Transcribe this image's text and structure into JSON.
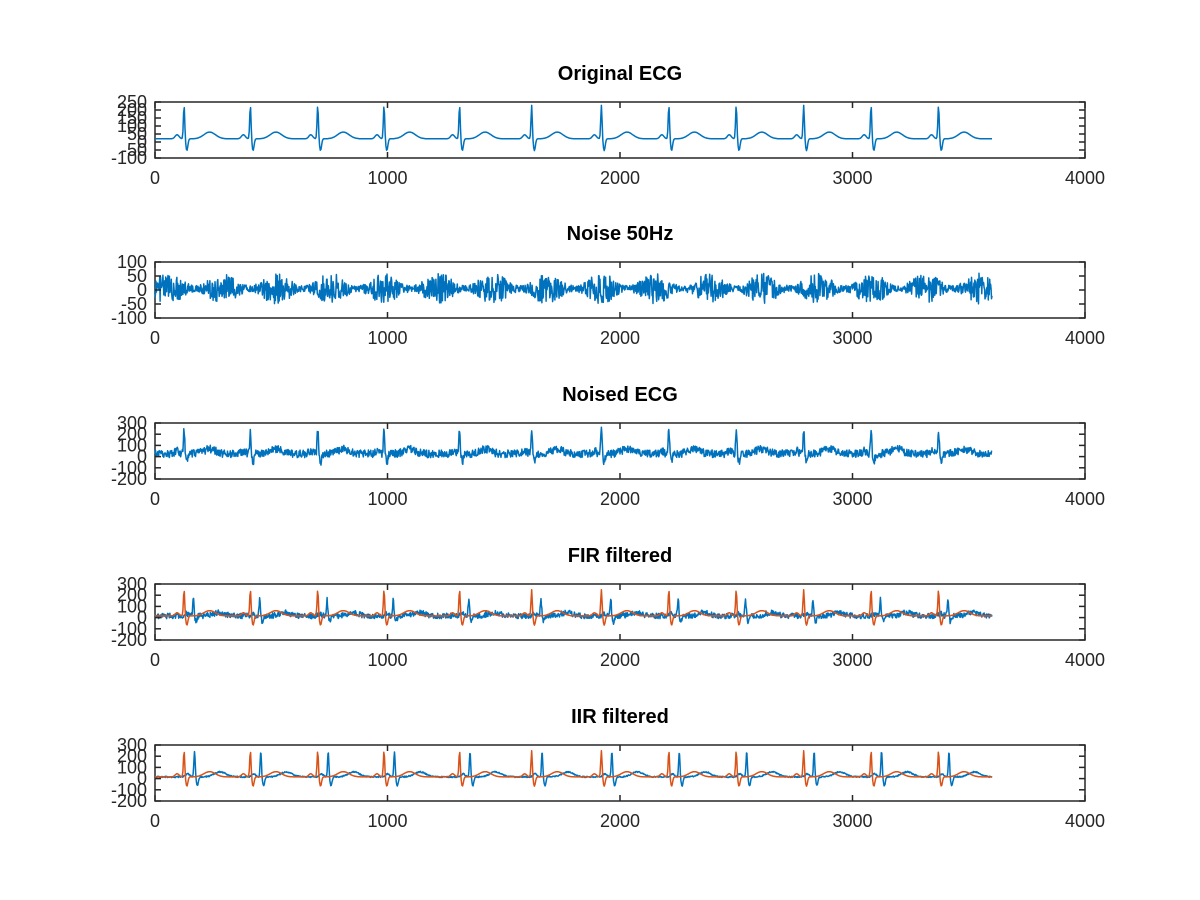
{
  "colors": {
    "blue": "#0072BD",
    "orange": "#D95319",
    "axis": "#262626"
  },
  "chart_data": [
    {
      "type": "line",
      "title": "Original ECG",
      "xlim": [
        0,
        4000
      ],
      "ylim": [
        -100,
        250
      ],
      "xticks": [
        "0",
        "1000",
        "2000",
        "3000",
        "4000"
      ],
      "yticks": [
        "-100",
        "-50",
        "0",
        "50",
        "100",
        "150",
        "200",
        "250"
      ],
      "grid": false,
      "series": [
        {
          "color": "#0072BD",
          "signal": "ecg",
          "baseline": 20,
          "r_peak": 230,
          "noise_amp": 0,
          "lag": 0,
          "x_end": 3600
        }
      ]
    },
    {
      "type": "line",
      "title": "Noise 50Hz",
      "xlim": [
        0,
        4000
      ],
      "ylim": [
        -100,
        100
      ],
      "xticks": [
        "0",
        "1000",
        "2000",
        "3000",
        "4000"
      ],
      "yticks": [
        "-100",
        "-50",
        "0",
        "50",
        "100"
      ],
      "grid": false,
      "series": [
        {
          "color": "#0072BD",
          "signal": "noise",
          "baseline": 5,
          "r_peak": 0,
          "noise_amp": 55,
          "lag": 0,
          "x_end": 3600
        }
      ]
    },
    {
      "type": "line",
      "title": "Noised ECG",
      "xlim": [
        0,
        4000
      ],
      "ylim": [
        -200,
        300
      ],
      "xticks": [
        "0",
        "1000",
        "2000",
        "3000",
        "4000"
      ],
      "yticks": [
        "-200",
        "-100",
        "0",
        "100",
        "200",
        "300"
      ],
      "grid": false,
      "series": [
        {
          "color": "#0072BD",
          "signal": "ecg",
          "baseline": 25,
          "r_peak": 240,
          "noise_amp": 50,
          "lag": 0,
          "x_end": 3600
        }
      ]
    },
    {
      "type": "line",
      "title": "FIR filtered",
      "xlim": [
        0,
        4000
      ],
      "ylim": [
        -200,
        300
      ],
      "xticks": [
        "0",
        "1000",
        "2000",
        "3000",
        "4000"
      ],
      "yticks": [
        "-200",
        "-100",
        "0",
        "100",
        "200",
        "300"
      ],
      "grid": false,
      "series": [
        {
          "color": "#0072BD",
          "signal": "ecg",
          "baseline": 15,
          "r_peak": 160,
          "noise_amp": 35,
          "lag": 40,
          "x_end": 3600
        },
        {
          "color": "#D95319",
          "signal": "ecg",
          "baseline": 15,
          "r_peak": 250,
          "noise_amp": 0,
          "lag": 0,
          "x_end": 3600
        }
      ]
    },
    {
      "type": "line",
      "title": "IIR filtered",
      "xlim": [
        0,
        4000
      ],
      "ylim": [
        -200,
        300
      ],
      "xticks": [
        "0",
        "1000",
        "2000",
        "3000",
        "4000"
      ],
      "yticks": [
        "-200",
        "-100",
        "0",
        "100",
        "200",
        "300"
      ],
      "grid": false,
      "series": [
        {
          "color": "#0072BD",
          "signal": "ecg",
          "baseline": 15,
          "r_peak": 240,
          "noise_amp": 8,
          "lag": 45,
          "x_end": 3600
        },
        {
          "color": "#D95319",
          "signal": "ecg",
          "baseline": 15,
          "r_peak": 250,
          "noise_amp": 0,
          "lag": 0,
          "x_end": 3600
        }
      ]
    }
  ]
}
